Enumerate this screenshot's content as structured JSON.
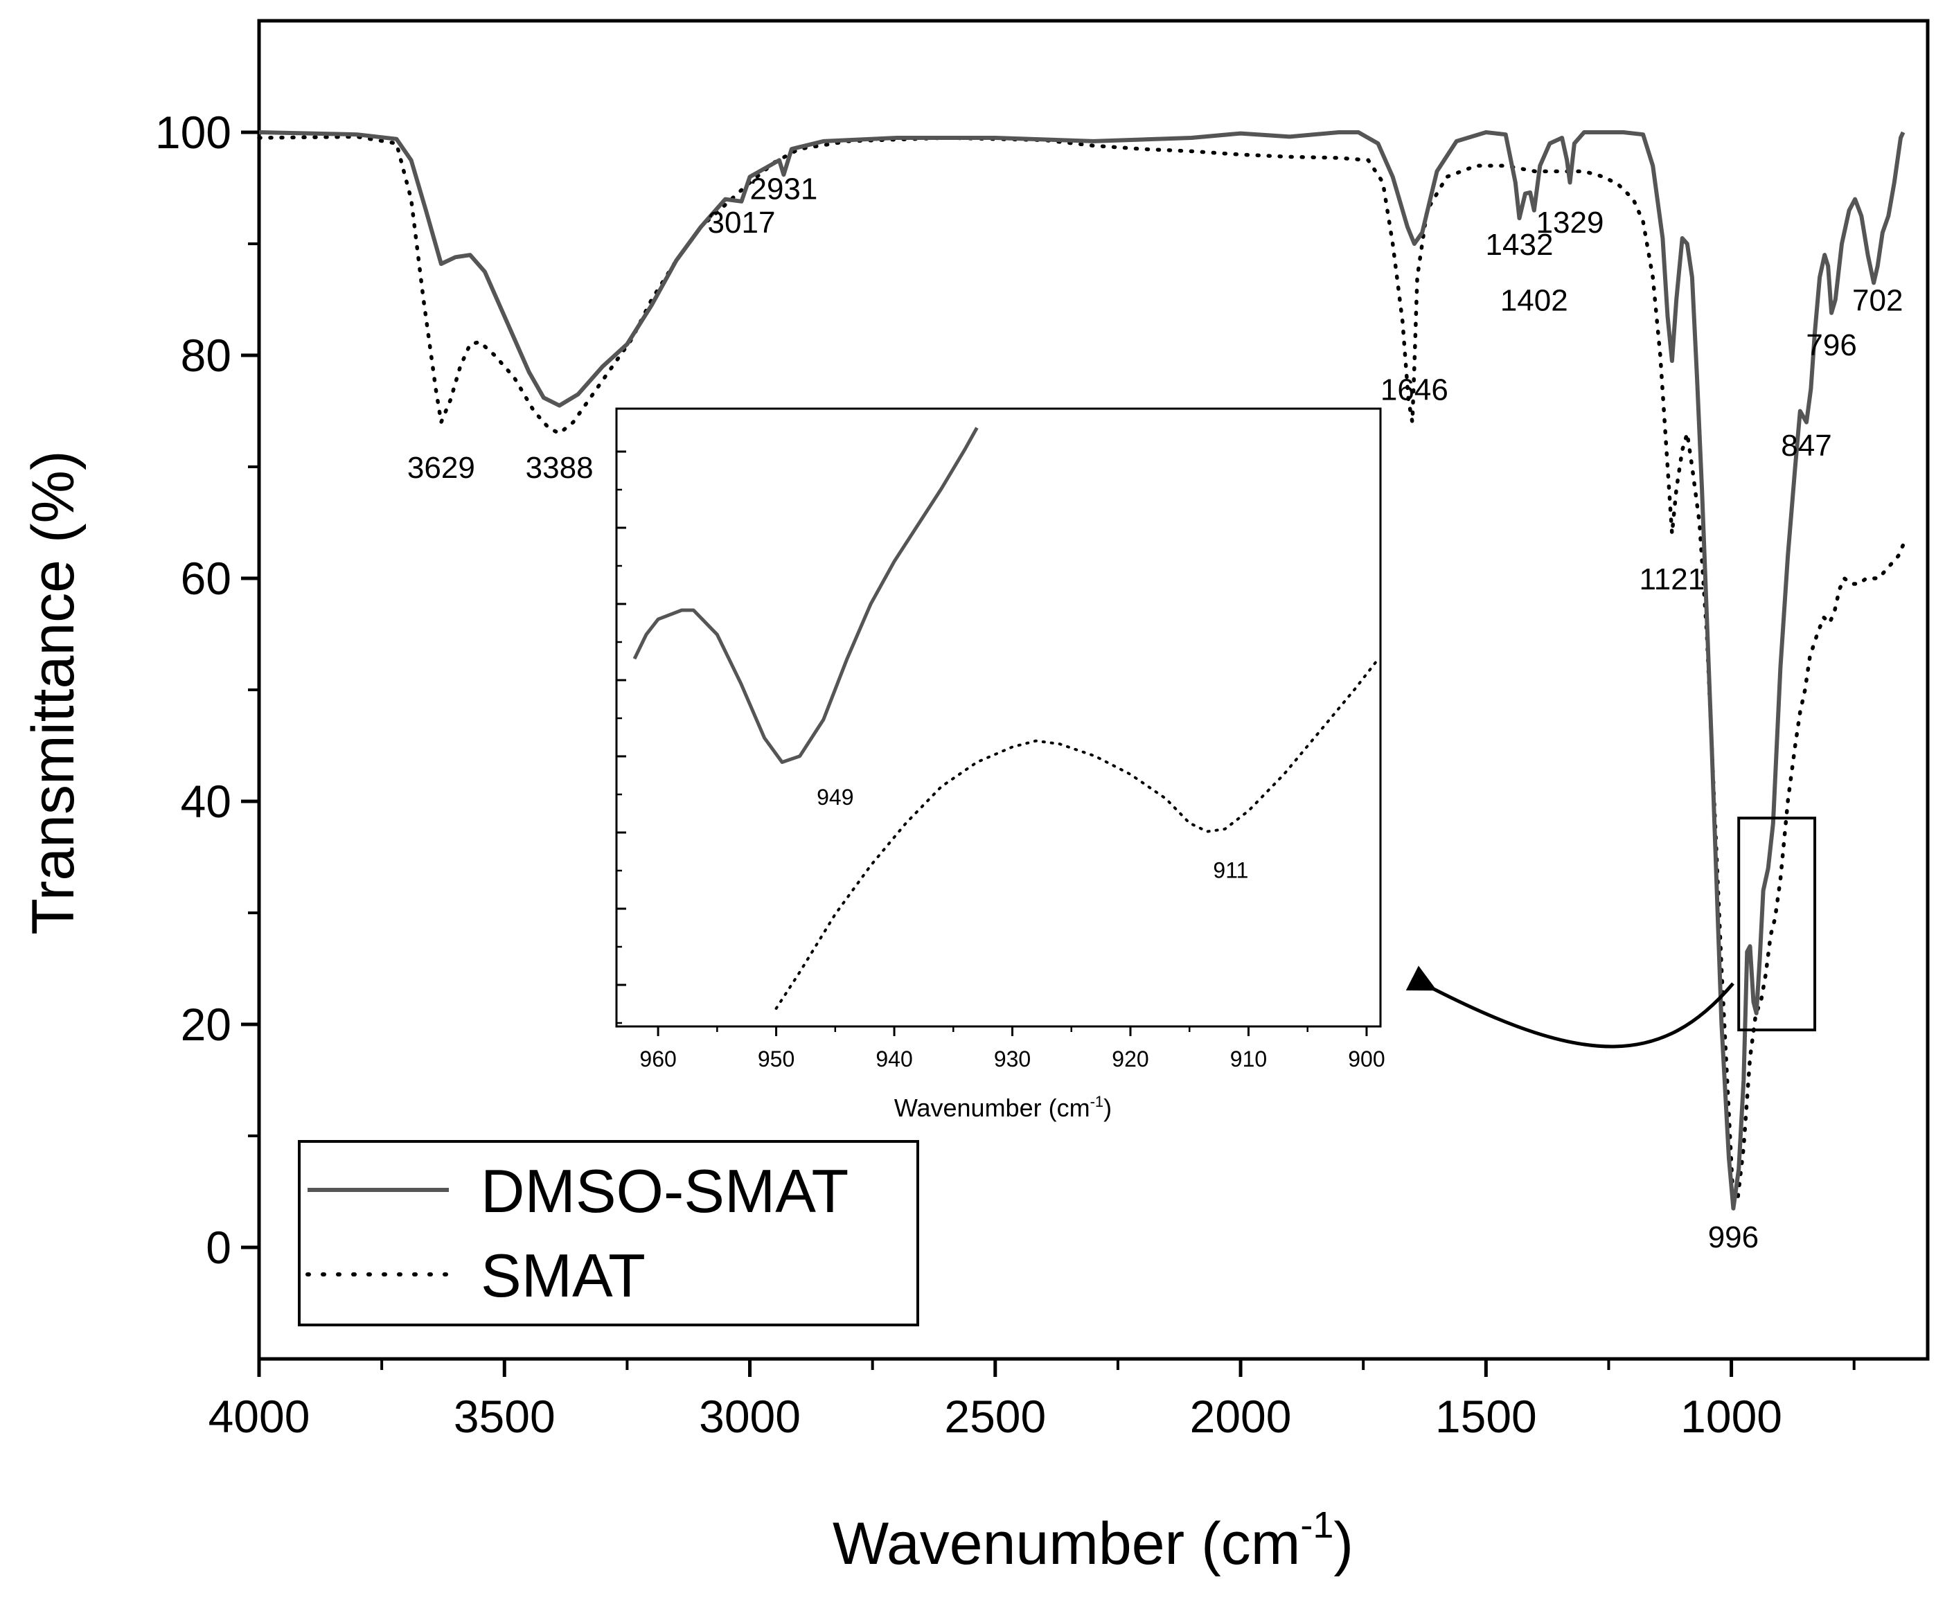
{
  "chart_data": {
    "type": "line",
    "title": "",
    "xlabel": "Wavenumber (cm",
    "xlabel_sup": "-1",
    "xlabel_close": ")",
    "ylabel": "Transmittance (%)",
    "xlim": [
      4000,
      600
    ],
    "ylim": [
      -10,
      110
    ],
    "xticks": [
      "4000",
      "3500",
      "3000",
      "2500",
      "2000",
      "1500",
      "1000"
    ],
    "yticks": [
      "0",
      "20",
      "40",
      "60",
      "80",
      "100"
    ],
    "legend_position": "bottom-left",
    "series": [
      {
        "name": "DMSO-SMAT",
        "style": "solid",
        "color": "#555555",
        "points": [
          [
            4000,
            100
          ],
          [
            3800,
            99.8
          ],
          [
            3720,
            99.4
          ],
          [
            3690,
            97.5
          ],
          [
            3660,
            93
          ],
          [
            3629,
            88.2
          ],
          [
            3600,
            88.8
          ],
          [
            3570,
            89
          ],
          [
            3540,
            87.5
          ],
          [
            3500,
            83.5
          ],
          [
            3450,
            78.5
          ],
          [
            3420,
            76.2
          ],
          [
            3388,
            75.5
          ],
          [
            3350,
            76.5
          ],
          [
            3300,
            79
          ],
          [
            3250,
            81
          ],
          [
            3200,
            84.5
          ],
          [
            3150,
            88.5
          ],
          [
            3100,
            91.5
          ],
          [
            3050,
            94
          ],
          [
            3017,
            93.8
          ],
          [
            3000,
            96
          ],
          [
            2960,
            97
          ],
          [
            2940,
            97.5
          ],
          [
            2931,
            96.2
          ],
          [
            2915,
            98.5
          ],
          [
            2850,
            99.2
          ],
          [
            2700,
            99.5
          ],
          [
            2500,
            99.5
          ],
          [
            2300,
            99.2
          ],
          [
            2100,
            99.5
          ],
          [
            2000,
            99.9
          ],
          [
            1900,
            99.6
          ],
          [
            1800,
            100
          ],
          [
            1760,
            100
          ],
          [
            1720,
            99
          ],
          [
            1690,
            96
          ],
          [
            1660,
            91.5
          ],
          [
            1646,
            90
          ],
          [
            1630,
            91
          ],
          [
            1600,
            96.5
          ],
          [
            1560,
            99.2
          ],
          [
            1500,
            100
          ],
          [
            1460,
            99.8
          ],
          [
            1440,
            95.5
          ],
          [
            1432,
            92.3
          ],
          [
            1420,
            94.5
          ],
          [
            1410,
            94.6
          ],
          [
            1402,
            93
          ],
          [
            1390,
            97
          ],
          [
            1370,
            99
          ],
          [
            1345,
            99.5
          ],
          [
            1335,
            97.5
          ],
          [
            1329,
            95.5
          ],
          [
            1320,
            99
          ],
          [
            1300,
            100
          ],
          [
            1220,
            100
          ],
          [
            1180,
            99.8
          ],
          [
            1160,
            97
          ],
          [
            1140,
            90.5
          ],
          [
            1130,
            83.5
          ],
          [
            1121,
            79.5
          ],
          [
            1112,
            85
          ],
          [
            1100,
            90.5
          ],
          [
            1090,
            90
          ],
          [
            1080,
            87
          ],
          [
            1070,
            78
          ],
          [
            1060,
            68
          ],
          [
            1040,
            45
          ],
          [
            1020,
            20
          ],
          [
            1005,
            8
          ],
          [
            996,
            3.5
          ],
          [
            985,
            7
          ],
          [
            975,
            15
          ],
          [
            968,
            26.5
          ],
          [
            962,
            27
          ],
          [
            955,
            22
          ],
          [
            949,
            21
          ],
          [
            942,
            26
          ],
          [
            935,
            32
          ],
          [
            925,
            34
          ],
          [
            915,
            38
          ],
          [
            900,
            52
          ],
          [
            885,
            62
          ],
          [
            870,
            70
          ],
          [
            860,
            75
          ],
          [
            847,
            74
          ],
          [
            838,
            77
          ],
          [
            830,
            82
          ],
          [
            820,
            87
          ],
          [
            810,
            89
          ],
          [
            803,
            88
          ],
          [
            796,
            83.8
          ],
          [
            788,
            85
          ],
          [
            775,
            90
          ],
          [
            760,
            93
          ],
          [
            748,
            94
          ],
          [
            735,
            92.5
          ],
          [
            722,
            89
          ],
          [
            710,
            86.5
          ],
          [
            702,
            88
          ],
          [
            692,
            91
          ],
          [
            680,
            92.5
          ],
          [
            668,
            95.5
          ],
          [
            655,
            99.5
          ],
          [
            650,
            100
          ]
        ]
      },
      {
        "name": "SMAT",
        "style": "dotted",
        "color": "#000000",
        "points": [
          [
            4000,
            99.5
          ],
          [
            3800,
            99.6
          ],
          [
            3720,
            99
          ],
          [
            3690,
            94
          ],
          [
            3665,
            85
          ],
          [
            3640,
            77
          ],
          [
            3629,
            74
          ],
          [
            3610,
            76
          ],
          [
            3590,
            79
          ],
          [
            3570,
            81
          ],
          [
            3550,
            81.2
          ],
          [
            3520,
            80
          ],
          [
            3480,
            78
          ],
          [
            3440,
            75
          ],
          [
            3410,
            73.5
          ],
          [
            3388,
            73
          ],
          [
            3360,
            74
          ],
          [
            3320,
            76.5
          ],
          [
            3280,
            79
          ],
          [
            3240,
            81.5
          ],
          [
            3200,
            85
          ],
          [
            3150,
            88.5
          ],
          [
            3100,
            91.5
          ],
          [
            3050,
            93.5
          ],
          [
            3000,
            95.5
          ],
          [
            2950,
            97.3
          ],
          [
            2900,
            98.5
          ],
          [
            2800,
            99.2
          ],
          [
            2600,
            99.5
          ],
          [
            2400,
            99.3
          ],
          [
            2300,
            98.8
          ],
          [
            2200,
            98.5
          ],
          [
            2100,
            98.3
          ],
          [
            2000,
            98
          ],
          [
            1900,
            97.8
          ],
          [
            1800,
            97.7
          ],
          [
            1740,
            97.5
          ],
          [
            1710,
            95.5
          ],
          [
            1690,
            90
          ],
          [
            1670,
            83
          ],
          [
            1658,
            76
          ],
          [
            1650,
            74
          ],
          [
            1646,
            79
          ],
          [
            1640,
            87
          ],
          [
            1620,
            93
          ],
          [
            1580,
            96
          ],
          [
            1520,
            97
          ],
          [
            1460,
            97
          ],
          [
            1400,
            96.5
          ],
          [
            1350,
            96.5
          ],
          [
            1300,
            96.5
          ],
          [
            1260,
            96
          ],
          [
            1230,
            95.3
          ],
          [
            1200,
            94
          ],
          [
            1180,
            92
          ],
          [
            1160,
            87
          ],
          [
            1145,
            80
          ],
          [
            1130,
            70
          ],
          [
            1121,
            64
          ],
          [
            1112,
            68
          ],
          [
            1100,
            71.5
          ],
          [
            1090,
            73
          ],
          [
            1080,
            70
          ],
          [
            1065,
            65
          ],
          [
            1050,
            55
          ],
          [
            1035,
            40
          ],
          [
            1020,
            25
          ],
          [
            1005,
            12
          ],
          [
            996,
            4
          ],
          [
            988,
            4
          ],
          [
            975,
            9
          ],
          [
            962,
            17
          ],
          [
            950,
            21
          ],
          [
            940,
            22
          ],
          [
            930,
            24.5
          ],
          [
            920,
            28
          ],
          [
            911,
            29.5
          ],
          [
            900,
            33
          ],
          [
            885,
            40
          ],
          [
            870,
            45
          ],
          [
            860,
            48
          ],
          [
            850,
            50
          ],
          [
            840,
            53
          ],
          [
            825,
            55
          ],
          [
            812,
            56.5
          ],
          [
            800,
            56
          ],
          [
            790,
            57
          ],
          [
            780,
            59
          ],
          [
            770,
            60
          ],
          [
            755,
            59.5
          ],
          [
            740,
            59.5
          ],
          [
            725,
            60
          ],
          [
            710,
            60
          ],
          [
            700,
            60
          ],
          [
            680,
            61
          ],
          [
            660,
            62
          ],
          [
            650,
            63
          ]
        ]
      }
    ],
    "peak_labels": [
      {
        "text": "3629",
        "x": 3629,
        "y": 69
      },
      {
        "text": "3388",
        "x": 3388,
        "y": 69
      },
      {
        "text": "3017",
        "x": 3017,
        "y": 91
      },
      {
        "text": "2931",
        "x": 2931,
        "y": 94
      },
      {
        "text": "1646",
        "x": 1646,
        "y": 76
      },
      {
        "text": "1432",
        "x": 1432,
        "y": 89
      },
      {
        "text": "1402",
        "x": 1402,
        "y": 84
      },
      {
        "text": "1329",
        "x": 1329,
        "y": 91
      },
      {
        "text": "1121",
        "x": 1121,
        "y": 59
      },
      {
        "text": "847",
        "x": 847,
        "y": 71
      },
      {
        "text": "796",
        "x": 796,
        "y": 80
      },
      {
        "text": "702",
        "x": 702,
        "y": 84
      },
      {
        "text": "996",
        "x": 996,
        "y": 0
      }
    ],
    "zoom_region": {
      "x": [
        985,
        830
      ],
      "y": [
        19.5,
        38.5
      ]
    },
    "inset": {
      "xlabel": "Wavenumber (cm",
      "xlabel_sup": "-1",
      "xlabel_close": ")",
      "xlim": [
        962,
        899
      ],
      "ylim": [
        0,
        1
      ],
      "xticks": [
        "960",
        "950",
        "940",
        "930",
        "920",
        "910",
        "900"
      ],
      "series": [
        {
          "name": "DMSO-SMAT",
          "style": "solid",
          "points": [
            [
              962,
              0.6
            ],
            [
              961,
              0.64
            ],
            [
              960,
              0.665
            ],
            [
              958,
              0.68
            ],
            [
              957,
              0.68
            ],
            [
              955,
              0.64
            ],
            [
              953,
              0.56
            ],
            [
              951,
              0.47
            ],
            [
              949.5,
              0.43
            ],
            [
              948,
              0.44
            ],
            [
              946,
              0.5
            ],
            [
              944,
              0.6
            ],
            [
              942,
              0.69
            ],
            [
              940,
              0.76
            ],
            [
              938,
              0.82
            ],
            [
              936,
              0.88
            ],
            [
              934,
              0.945
            ],
            [
              933,
              0.98
            ]
          ]
        },
        {
          "name": "SMAT",
          "style": "dotted",
          "points": [
            [
              950,
              0.025
            ],
            [
              948,
              0.085
            ],
            [
              945,
              0.18
            ],
            [
              942,
              0.26
            ],
            [
              939,
              0.33
            ],
            [
              936,
              0.39
            ],
            [
              933,
              0.43
            ],
            [
              930,
              0.455
            ],
            [
              928,
              0.465
            ],
            [
              926,
              0.46
            ],
            [
              923,
              0.44
            ],
            [
              920,
              0.41
            ],
            [
              917,
              0.37
            ],
            [
              915,
              0.33
            ],
            [
              913.5,
              0.316
            ],
            [
              912,
              0.32
            ],
            [
              910,
              0.35
            ],
            [
              907,
              0.41
            ],
            [
              904,
              0.48
            ],
            [
              901,
              0.55
            ],
            [
              899,
              0.6
            ]
          ]
        }
      ],
      "peak_labels": [
        {
          "text": "949",
          "x": 945,
          "y": 0.36
        },
        {
          "text": "911",
          "x": 911.5,
          "y": 0.24
        }
      ]
    }
  }
}
